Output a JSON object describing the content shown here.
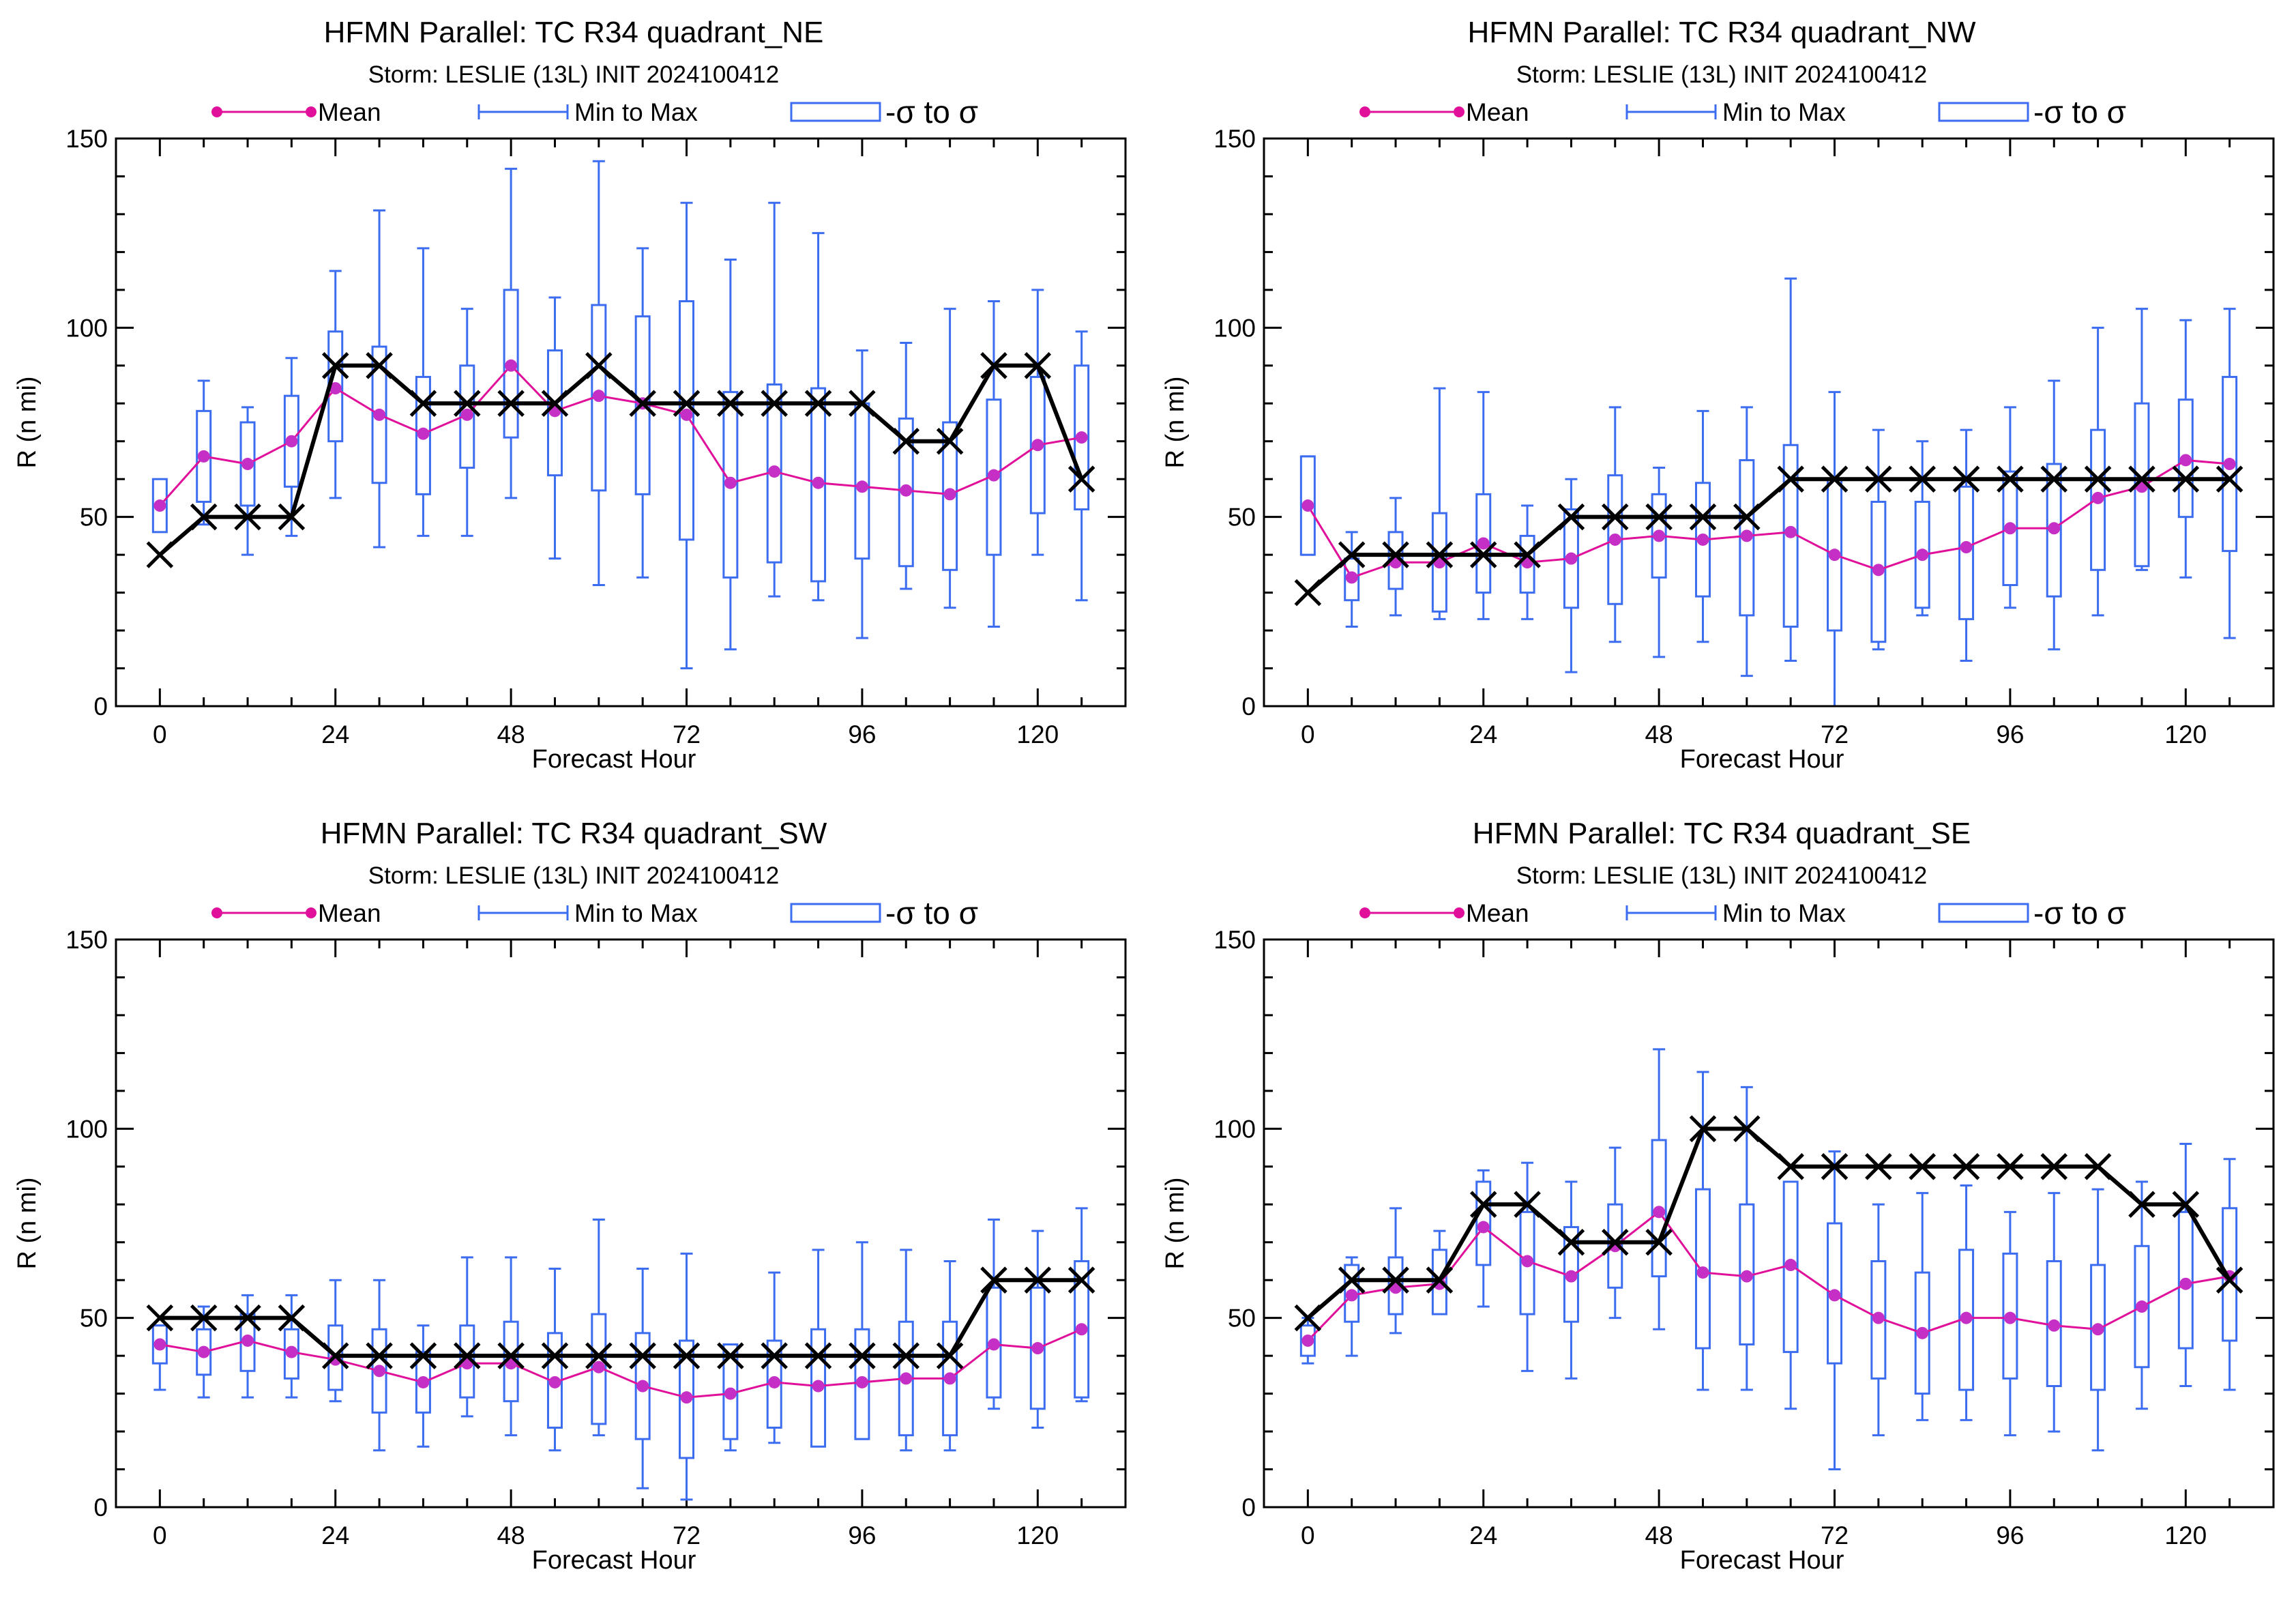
{
  "figure": {
    "colors": {
      "mean": "#e0109a",
      "mean_marker": "#c62fc6",
      "range": "#3c6cf0",
      "obs": "#000000"
    },
    "legend": {
      "mean_label": "Mean",
      "minmax_label": "Min to Max",
      "sigma_label": "-σ to σ"
    }
  },
  "chart_data": [
    {
      "type": "box",
      "title": "HFMN Parallel: TC  R34 quadrant_NE",
      "subtitle": "Storm: LESLIE (13L) INIT 2024100412",
      "xlabel": "Forecast Hour",
      "ylabel": "R (n mi)",
      "xlim": [
        -6,
        132
      ],
      "ylim": [
        0,
        150
      ],
      "xticks": [
        0,
        24,
        48,
        72,
        96,
        120
      ],
      "yticks": [
        0,
        50,
        100,
        150
      ],
      "x": [
        0,
        6,
        12,
        18,
        24,
        30,
        36,
        42,
        48,
        54,
        60,
        66,
        72,
        78,
        84,
        90,
        96,
        102,
        108,
        114,
        120,
        126
      ],
      "mean": [
        53,
        66,
        64,
        70,
        84,
        77,
        72,
        77,
        90,
        78,
        82,
        80,
        77,
        59,
        62,
        59,
        58,
        57,
        56,
        61,
        69,
        71
      ],
      "min": [
        47,
        48,
        40,
        45,
        55,
        42,
        45,
        45,
        55,
        39,
        32,
        34,
        10,
        15,
        29,
        28,
        18,
        31,
        26,
        21,
        40,
        28
      ],
      "max": [
        58,
        86,
        79,
        92,
        115,
        131,
        121,
        105,
        142,
        108,
        144,
        121,
        133,
        118,
        133,
        125,
        94,
        96,
        105,
        107,
        110,
        99
      ],
      "sigma_low": [
        46,
        54,
        53,
        58,
        70,
        59,
        56,
        63,
        71,
        61,
        57,
        56,
        44,
        34,
        38,
        33,
        39,
        37,
        36,
        40,
        51,
        52
      ],
      "sigma_high": [
        60,
        78,
        75,
        82,
        99,
        95,
        87,
        90,
        110,
        94,
        106,
        103,
        107,
        83,
        85,
        84,
        80,
        76,
        75,
        81,
        87,
        90
      ],
      "obs": [
        40,
        50,
        50,
        50,
        90,
        90,
        80,
        80,
        80,
        80,
        90,
        80,
        80,
        80,
        80,
        80,
        80,
        70,
        70,
        90,
        90,
        60
      ]
    },
    {
      "type": "box",
      "title": "HFMN Parallel: TC  R34 quadrant_NW",
      "subtitle": "Storm: LESLIE (13L) INIT 2024100412",
      "xlabel": "Forecast Hour",
      "ylabel": "R (n mi)",
      "xlim": [
        -6,
        132
      ],
      "ylim": [
        0,
        150
      ],
      "xticks": [
        0,
        24,
        48,
        72,
        96,
        120
      ],
      "yticks": [
        0,
        50,
        100,
        150
      ],
      "x": [
        0,
        6,
        12,
        18,
        24,
        30,
        36,
        42,
        48,
        54,
        60,
        66,
        72,
        78,
        84,
        90,
        96,
        102,
        108,
        114,
        120,
        126
      ],
      "mean": [
        53,
        34,
        38,
        38,
        43,
        38,
        39,
        44,
        45,
        44,
        45,
        46,
        40,
        36,
        40,
        42,
        47,
        47,
        55,
        58,
        65,
        64
      ],
      "min": [
        40,
        21,
        24,
        23,
        23,
        23,
        9,
        17,
        13,
        17,
        8,
        12,
        0,
        15,
        24,
        12,
        26,
        15,
        24,
        36,
        34,
        18
      ],
      "max": [
        66,
        46,
        55,
        84,
        83,
        53,
        60,
        79,
        63,
        78,
        79,
        113,
        83,
        73,
        70,
        73,
        79,
        86,
        100,
        105,
        102,
        105
      ],
      "sigma_low": [
        40,
        28,
        31,
        25,
        30,
        30,
        26,
        27,
        34,
        29,
        24,
        21,
        20,
        17,
        26,
        23,
        32,
        29,
        36,
        37,
        50,
        41
      ],
      "sigma_high": [
        66,
        39,
        46,
        51,
        56,
        45,
        52,
        61,
        56,
        59,
        65,
        69,
        60,
        54,
        54,
        58,
        62,
        64,
        73,
        80,
        81,
        87
      ],
      "obs": [
        30,
        40,
        40,
        40,
        40,
        40,
        50,
        50,
        50,
        50,
        50,
        60,
        60,
        60,
        60,
        60,
        60,
        60,
        60,
        60,
        60,
        60
      ]
    },
    {
      "type": "box",
      "title": "HFMN Parallel: TC  R34 quadrant_SW",
      "subtitle": "Storm: LESLIE (13L) INIT 2024100412",
      "xlabel": "Forecast Hour",
      "ylabel": "R (n mi)",
      "xlim": [
        -6,
        132
      ],
      "ylim": [
        0,
        150
      ],
      "xticks": [
        0,
        24,
        48,
        72,
        96,
        120
      ],
      "yticks": [
        0,
        50,
        100,
        150
      ],
      "x": [
        0,
        6,
        12,
        18,
        24,
        30,
        36,
        42,
        48,
        54,
        60,
        66,
        72,
        78,
        84,
        90,
        96,
        102,
        108,
        114,
        120,
        126
      ],
      "mean": [
        43,
        41,
        44,
        41,
        39,
        36,
        33,
        38,
        38,
        33,
        37,
        32,
        29,
        30,
        33,
        32,
        33,
        34,
        34,
        43,
        42,
        47
      ],
      "min": [
        31,
        29,
        29,
        29,
        28,
        15,
        16,
        24,
        19,
        15,
        19,
        5,
        2,
        15,
        17,
        17,
        18,
        15,
        15,
        26,
        21,
        28
      ],
      "max": [
        48,
        53,
        56,
        56,
        60,
        60,
        48,
        66,
        66,
        63,
        76,
        63,
        67,
        43,
        62,
        68,
        70,
        68,
        65,
        76,
        73,
        79
      ],
      "sigma_low": [
        38,
        35,
        36,
        34,
        31,
        25,
        25,
        29,
        28,
        21,
        22,
        18,
        13,
        18,
        21,
        16,
        18,
        19,
        19,
        29,
        26,
        29
      ],
      "sigma_high": [
        48,
        47,
        51,
        47,
        48,
        47,
        41,
        48,
        49,
        46,
        51,
        46,
        44,
        43,
        44,
        47,
        47,
        49,
        49,
        58,
        58,
        65
      ],
      "obs": [
        50,
        50,
        50,
        50,
        40,
        40,
        40,
        40,
        40,
        40,
        40,
        40,
        40,
        40,
        40,
        40,
        40,
        40,
        40,
        60,
        60,
        60
      ]
    },
    {
      "type": "box",
      "title": "HFMN Parallel: TC  R34 quadrant_SE",
      "subtitle": "Storm: LESLIE (13L) INIT 2024100412",
      "xlabel": "Forecast Hour",
      "ylabel": "R (n mi)",
      "xlim": [
        -6,
        132
      ],
      "ylim": [
        0,
        150
      ],
      "xticks": [
        0,
        24,
        48,
        72,
        96,
        120
      ],
      "yticks": [
        0,
        50,
        100,
        150
      ],
      "x": [
        0,
        6,
        12,
        18,
        24,
        30,
        36,
        42,
        48,
        54,
        60,
        66,
        72,
        78,
        84,
        90,
        96,
        102,
        108,
        114,
        120,
        126
      ],
      "mean": [
        44,
        56,
        58,
        59,
        74,
        65,
        61,
        69,
        78,
        62,
        61,
        64,
        56,
        50,
        46,
        50,
        50,
        48,
        47,
        53,
        59,
        61
      ],
      "min": [
        38,
        40,
        46,
        52,
        53,
        36,
        34,
        50,
        47,
        31,
        31,
        26,
        10,
        19,
        23,
        23,
        19,
        20,
        15,
        26,
        32,
        31
      ],
      "max": [
        50,
        66,
        79,
        73,
        89,
        91,
        86,
        95,
        121,
        115,
        111,
        85,
        94,
        80,
        83,
        85,
        78,
        83,
        84,
        86,
        96,
        92
      ],
      "sigma_low": [
        40,
        49,
        51,
        51,
        64,
        51,
        49,
        58,
        61,
        42,
        43,
        41,
        38,
        34,
        30,
        31,
        34,
        32,
        31,
        37,
        42,
        44
      ],
      "sigma_high": [
        48,
        64,
        66,
        68,
        86,
        78,
        74,
        80,
        97,
        84,
        80,
        86,
        75,
        65,
        62,
        68,
        67,
        65,
        64,
        69,
        78,
        79
      ],
      "obs": [
        50,
        60,
        60,
        60,
        80,
        80,
        70,
        70,
        70,
        100,
        100,
        90,
        90,
        90,
        90,
        90,
        90,
        90,
        90,
        80,
        80,
        60
      ]
    }
  ]
}
